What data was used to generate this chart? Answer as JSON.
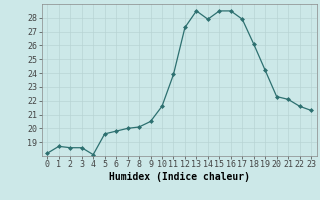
{
  "x": [
    0,
    1,
    2,
    3,
    4,
    5,
    6,
    7,
    8,
    9,
    10,
    11,
    12,
    13,
    14,
    15,
    16,
    17,
    18,
    19,
    20,
    21,
    22,
    23
  ],
  "y": [
    18.2,
    18.7,
    18.6,
    18.6,
    18.1,
    19.6,
    19.8,
    20.0,
    20.1,
    20.5,
    21.6,
    23.9,
    27.3,
    28.5,
    27.9,
    28.5,
    28.5,
    27.9,
    26.1,
    24.2,
    22.3,
    22.1,
    21.6,
    21.3
  ],
  "xlabel": "Humidex (Indice chaleur)",
  "xlim": [
    -0.5,
    23.5
  ],
  "ylim": [
    18,
    29
  ],
  "yticks": [
    19,
    20,
    21,
    22,
    23,
    24,
    25,
    26,
    27,
    28
  ],
  "xtick_labels": [
    "0",
    "1",
    "2",
    "3",
    "4",
    "5",
    "6",
    "7",
    "8",
    "9",
    "10",
    "11",
    "12",
    "13",
    "14",
    "15",
    "16",
    "17",
    "18",
    "19",
    "20",
    "21",
    "22",
    "23"
  ],
  "line_color": "#2d7070",
  "marker": "D",
  "marker_size": 2.0,
  "bg_color": "#cce8e8",
  "grid_color": "#b8d4d4",
  "label_fontsize": 7.0,
  "tick_fontsize": 6.0
}
